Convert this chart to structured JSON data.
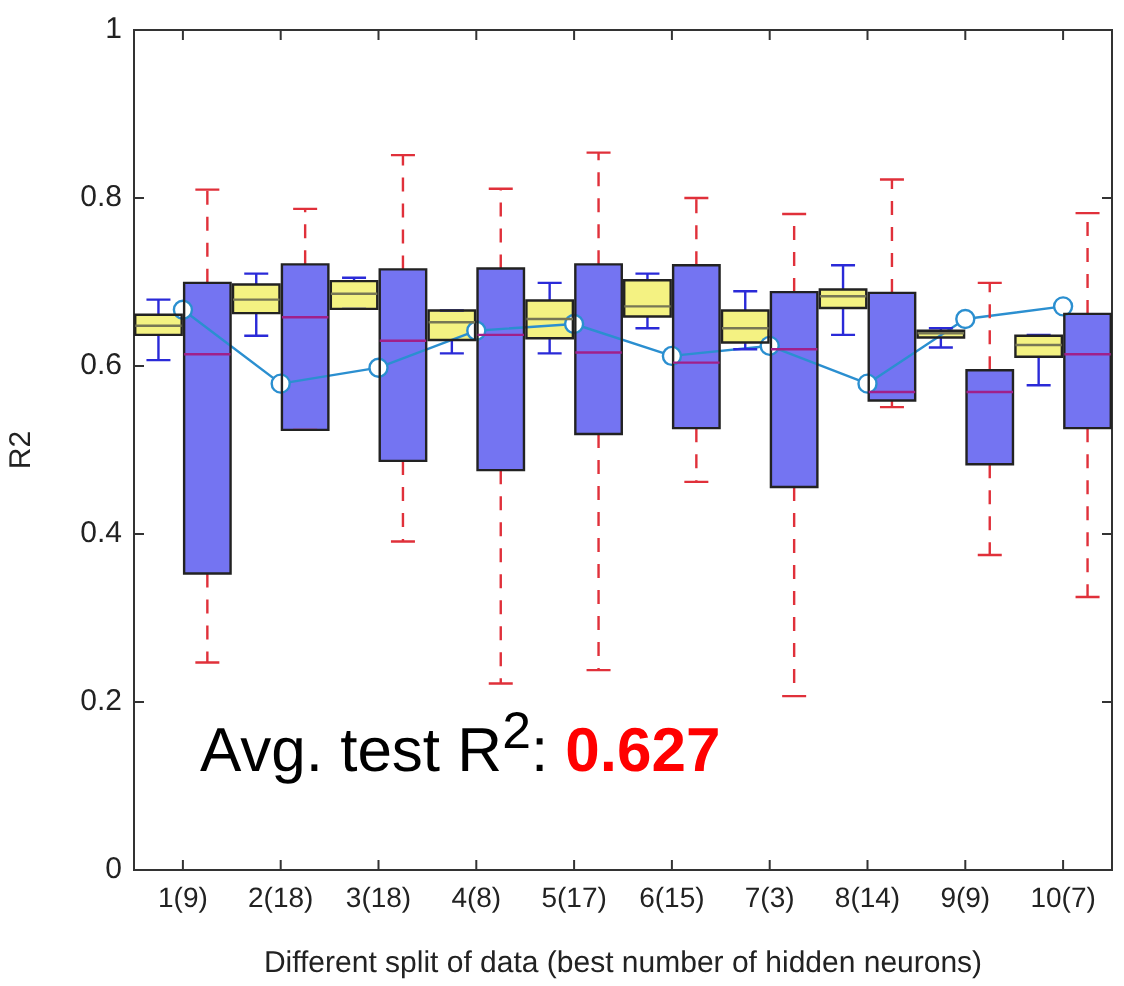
{
  "chart_data": {
    "type": "box",
    "xlabel": "Different split of data (best number of hidden neurons)",
    "ylabel": "R2",
    "categories": [
      "1(9)",
      "2(18)",
      "3(18)",
      "4(8)",
      "5(17)",
      "6(15)",
      "7(3)",
      "8(14)",
      "9(9)",
      "10(7)"
    ],
    "ylim": [
      0,
      1
    ],
    "yticks": [
      0,
      0.2,
      0.4,
      0.6,
      0.8,
      1
    ],
    "grid": false,
    "legend": false,
    "series": [
      {
        "color": "#f4f282",
        "boxes": [
          {
            "low": 0.607,
            "q1": 0.637,
            "median": 0.648,
            "q3": 0.661,
            "high": 0.679
          },
          {
            "low": 0.636,
            "q1": 0.663,
            "median": 0.679,
            "q3": 0.697,
            "high": 0.71
          },
          {
            "low": 0.668,
            "q1": 0.668,
            "median": 0.686,
            "q3": 0.701,
            "high": 0.705
          },
          {
            "low": 0.615,
            "q1": 0.631,
            "median": 0.652,
            "q3": 0.666,
            "high": 0.666
          },
          {
            "low": 0.615,
            "q1": 0.633,
            "median": 0.656,
            "q3": 0.678,
            "high": 0.699
          },
          {
            "low": 0.645,
            "q1": 0.659,
            "median": 0.671,
            "q3": 0.702,
            "high": 0.71
          },
          {
            "low": 0.62,
            "q1": 0.628,
            "median": 0.645,
            "q3": 0.666,
            "high": 0.689
          },
          {
            "low": 0.637,
            "q1": 0.669,
            "median": 0.683,
            "q3": 0.691,
            "high": 0.72
          },
          {
            "low": 0.622,
            "q1": 0.634,
            "median": 0.639,
            "q3": 0.642,
            "high": 0.645
          },
          {
            "low": 0.577,
            "q1": 0.611,
            "median": 0.625,
            "q3": 0.636,
            "high": 0.637
          }
        ]
      },
      {
        "color": "#7474f2",
        "line_style": "dashed",
        "boxes": [
          {
            "low": 0.247,
            "q1": 0.353,
            "median": 0.614,
            "q3": 0.699,
            "high": 0.81
          },
          {
            "low": 0.524,
            "q1": 0.524,
            "median": 0.658,
            "q3": 0.721,
            "high": 0.787
          },
          {
            "low": 0.391,
            "q1": 0.487,
            "median": 0.63,
            "q3": 0.715,
            "high": 0.851
          },
          {
            "low": 0.222,
            "q1": 0.476,
            "median": 0.637,
            "q3": 0.716,
            "high": 0.811
          },
          {
            "low": 0.238,
            "q1": 0.519,
            "median": 0.616,
            "q3": 0.721,
            "high": 0.854
          },
          {
            "low": 0.462,
            "q1": 0.526,
            "median": 0.604,
            "q3": 0.72,
            "high": 0.8
          },
          {
            "low": 0.207,
            "q1": 0.456,
            "median": 0.62,
            "q3": 0.688,
            "high": 0.781
          },
          {
            "low": 0.551,
            "q1": 0.559,
            "median": 0.569,
            "q3": 0.687,
            "high": 0.822
          },
          {
            "low": 0.375,
            "q1": 0.483,
            "median": 0.569,
            "q3": 0.595,
            "high": 0.699
          },
          {
            "low": 0.325,
            "q1": 0.526,
            "median": 0.614,
            "q3": 0.662,
            "high": 0.782
          }
        ]
      },
      {
        "type": "line",
        "color": "#2b8fd0",
        "marker": "circle",
        "values": [
          0.667,
          0.579,
          0.598,
          0.642,
          0.65,
          0.612,
          0.624,
          0.579,
          0.656,
          0.671
        ]
      }
    ],
    "annotations": [
      "Avg. test R$^{2}$: 0.627"
    ]
  }
}
